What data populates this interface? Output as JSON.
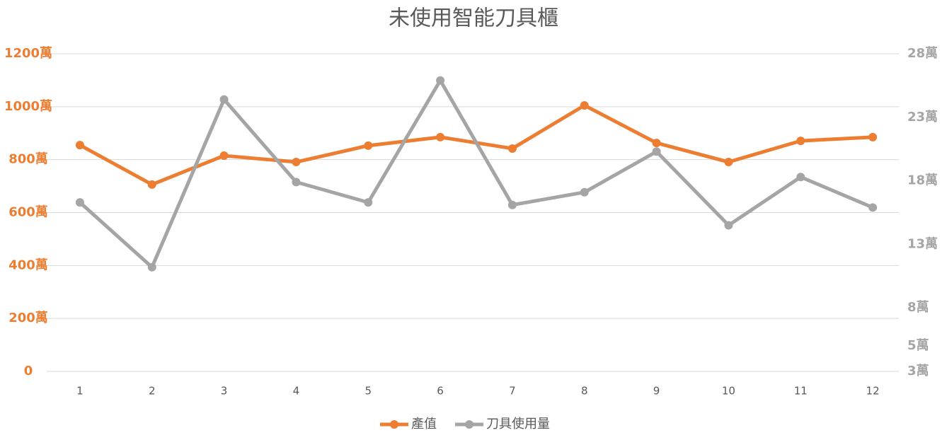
{
  "chart_data": {
    "type": "line",
    "title": "未使用智能刀具櫃",
    "categories": [
      "1",
      "2",
      "3",
      "4",
      "5",
      "6",
      "7",
      "8",
      "9",
      "10",
      "11",
      "12"
    ],
    "series": [
      {
        "name": "產值",
        "color": "#ed7d31",
        "values": [
          855,
          706,
          815,
          791,
          853,
          885,
          842,
          1005,
          863,
          791,
          871,
          885
        ]
      },
      {
        "name": "刀具使用量",
        "color": "#a5a5a5",
        "axis": "y2",
        "values": [
          16.3,
          11.2,
          24.4,
          17.9,
          16.3,
          25.9,
          16.1,
          17.1,
          20.3,
          14.5,
          18.3,
          15.9
        ]
      }
    ],
    "ylim": [
      0,
      1200
    ],
    "yticks": [
      0,
      {
        "value": 200,
        "label": "200萬"
      },
      {
        "value": 400,
        "label": "400萬"
      },
      {
        "value": 600,
        "label": "600萬"
      },
      {
        "value": 800,
        "label": "800萬"
      },
      {
        "value": 1000,
        "label": "1000萬"
      },
      {
        "value": 1200,
        "label": "1200萬"
      }
    ],
    "y2lim": [
      3,
      28
    ],
    "y2ticks": [
      {
        "value": 3,
        "label": "3萬"
      },
      {
        "value": 5,
        "label": "5萬"
      },
      {
        "value": 8,
        "label": "8萬"
      },
      {
        "value": 13,
        "label": "13萬"
      },
      {
        "value": 18,
        "label": "18萬"
      },
      {
        "value": 23,
        "label": "23萬"
      },
      {
        "value": 28,
        "label": "28萬"
      }
    ],
    "grid": true,
    "legend": "bottom"
  }
}
